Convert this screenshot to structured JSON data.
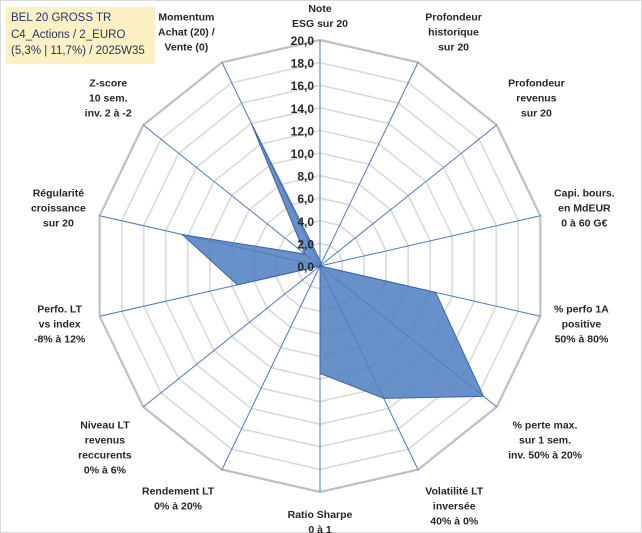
{
  "title_box": {
    "line1": "BEL 20 GROSS TR",
    "line2": "C4_Actions / 2_EURO",
    "line3": "(5,3% | 11,7%) / 2025W35"
  },
  "colors": {
    "series_fill": "#4f7ec0",
    "series_stroke": "#3a64a8",
    "grid": "#d9d9d9",
    "spokes": "#4a7ac2",
    "title_bg": "#fdf0c4",
    "title_text": "#1f3864"
  },
  "chart_data": {
    "type": "radar",
    "rmin": 0,
    "rmax": 20,
    "tick_step": 2,
    "tick_labels": [
      "0,0",
      "2,0",
      "4,0",
      "6,0",
      "8,0",
      "10,0",
      "12,0",
      "14,0",
      "16,0",
      "18,0",
      "20,0"
    ],
    "axes": [
      [
        "Note",
        "ESG sur 20"
      ],
      [
        "Profondeur",
        "historique",
        "sur 20"
      ],
      [
        "Profondeur",
        "revenus",
        "sur 20"
      ],
      [
        "Capi. bours.",
        "en MdEUR",
        "0 à 60 G€"
      ],
      [
        "% perfo 1A",
        "positive",
        "50% à 80%"
      ],
      [
        "% perte max.",
        "sur 1 sem.",
        "inv. 50% à 20%"
      ],
      [
        "Volatilité LT",
        "inversée",
        "40% à 0%"
      ],
      [
        "Ratio Sharpe",
        "0 à 1"
      ],
      [
        "Rendement LT",
        "0% à 20%"
      ],
      [
        "Niveau LT",
        "revenus",
        "reccurents",
        "0% à 6%"
      ],
      [
        "Perfo. LT",
        "vs index",
        "-8% à 12%"
      ],
      [
        "Régularité",
        "croissance",
        "sur 20"
      ],
      [
        "Z-score",
        "10 sem.",
        "inv. 2 à -2"
      ],
      [
        "Momentum",
        "Achat (20) /",
        "Vente (0)"
      ]
    ],
    "series": [
      {
        "values": [
          0.5,
          0.3,
          0,
          0,
          10.5,
          18.5,
          13.0,
          9.5,
          0,
          0,
          7.5,
          12.5,
          1.7,
          14.0
        ]
      }
    ],
    "grid": true,
    "legend": "none"
  }
}
